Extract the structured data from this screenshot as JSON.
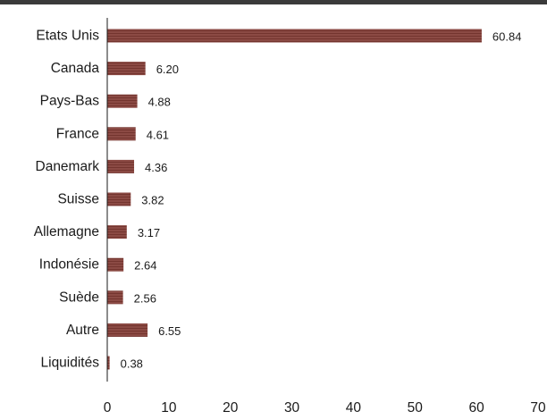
{
  "chart_data": {
    "type": "bar",
    "orientation": "horizontal",
    "categories": [
      "Etats Unis",
      "Canada",
      "Pays-Bas",
      "France",
      "Danemark",
      "Suisse",
      "Allemagne",
      "Indonésie",
      "Suède",
      "Autre",
      "Liquidités"
    ],
    "values": [
      60.84,
      6.2,
      4.88,
      4.61,
      4.36,
      3.82,
      3.17,
      2.64,
      2.56,
      6.55,
      0.38
    ],
    "data_labels": [
      "60.84",
      "6.20",
      "4.88",
      "4.61",
      "4.36",
      "3.82",
      "3.17",
      "2.64",
      "2.56",
      "6.55",
      "0.38"
    ],
    "xlim": [
      0,
      70
    ],
    "xticks": [
      0,
      10,
      20,
      30,
      40,
      50,
      60,
      70
    ],
    "title": "",
    "xlabel": "",
    "ylabel": "",
    "grid": false,
    "legend": "none",
    "bar_color": "#8b4a44",
    "bar_stripe_color": "#74352f"
  }
}
